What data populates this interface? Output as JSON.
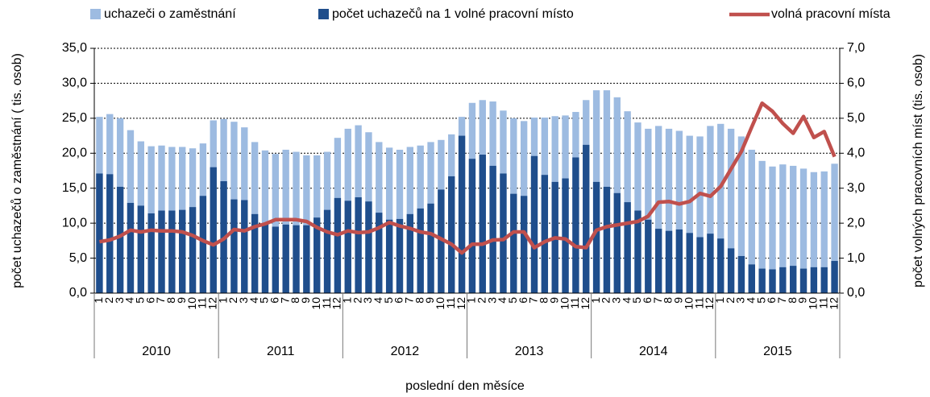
{
  "chart_data": {
    "type": "bar-line",
    "x_label": "poslední den měsíce",
    "y_label": "počet uchazečů o zaměstnání ( tis. osob)",
    "y2_label": "počet volných pracovních míst (tis. osob)",
    "categories": [
      "1",
      "2",
      "3",
      "4",
      "5",
      "6",
      "7",
      "8",
      "9",
      "10",
      "11",
      "12",
      "1",
      "2",
      "3",
      "4",
      "5",
      "6",
      "7",
      "8",
      "9",
      "10",
      "11",
      "12",
      "1",
      "2",
      "3",
      "4",
      "5",
      "6",
      "7",
      "8",
      "9",
      "10",
      "11",
      "12",
      "1",
      "2",
      "3",
      "4",
      "5",
      "6",
      "7",
      "8",
      "9",
      "10",
      "11",
      "12",
      "1",
      "2",
      "3",
      "4",
      "5",
      "6",
      "7",
      "8",
      "9",
      "10",
      "11",
      "12",
      "1",
      "2",
      "3",
      "4",
      "5",
      "6",
      "7",
      "8",
      "9",
      "10",
      "11",
      "12"
    ],
    "x_groups": [
      "2010",
      "2011",
      "2012",
      "2013",
      "2014",
      "2015"
    ],
    "ylim": [
      0,
      35
    ],
    "yticks": [
      {
        "value": 0,
        "label": "0,0"
      },
      {
        "value": 5,
        "label": "5,0"
      },
      {
        "value": 10,
        "label": "10,0"
      },
      {
        "value": 15,
        "label": "15,0"
      },
      {
        "value": 20,
        "label": "20,0"
      },
      {
        "value": 25,
        "label": "25,0"
      },
      {
        "value": 30,
        "label": "30,0"
      },
      {
        "value": 35,
        "label": "35,0"
      }
    ],
    "y2lim": [
      0,
      7
    ],
    "y2ticks": [
      {
        "value": 0,
        "label": "0,0"
      },
      {
        "value": 1,
        "label": "1,0"
      },
      {
        "value": 2,
        "label": "2,0"
      },
      {
        "value": 3,
        "label": "3,0"
      },
      {
        "value": 4,
        "label": "4,0"
      },
      {
        "value": 5,
        "label": "5,0"
      },
      {
        "value": 6,
        "label": "6,0"
      },
      {
        "value": 7,
        "label": "7,0"
      }
    ],
    "grid": true,
    "series": [
      {
        "name": "uchazeči o zaměstnání",
        "type": "bar",
        "color": "#9dbbe1",
        "axis": "y",
        "values": [
          25.2,
          25.6,
          25.0,
          23.3,
          21.7,
          21.0,
          21.1,
          20.9,
          20.9,
          20.7,
          21.4,
          24.7,
          24.9,
          24.5,
          23.7,
          21.6,
          20.4,
          19.9,
          20.5,
          20.2,
          19.7,
          19.7,
          20.2,
          22.2,
          23.5,
          24.0,
          23.0,
          21.6,
          20.8,
          20.5,
          20.9,
          21.1,
          21.6,
          21.9,
          22.7,
          25.2,
          27.2,
          27.6,
          27.4,
          26.1,
          25.0,
          24.6,
          25.1,
          25.1,
          25.3,
          25.4,
          25.9,
          27.6,
          29.0,
          29.0,
          28.0,
          26.0,
          24.4,
          23.5,
          23.9,
          23.5,
          23.2,
          22.5,
          22.4,
          23.9,
          24.2,
          23.5,
          22.4,
          20.5,
          18.9,
          18.1,
          18.4,
          18.2,
          17.8,
          17.3,
          17.4,
          18.5
        ]
      },
      {
        "name": "počet uchazečů na 1 volné pracovní místo",
        "type": "bar",
        "color": "#1f4e8c",
        "axis": "y",
        "values": [
          17.1,
          17.0,
          15.2,
          12.9,
          12.5,
          11.4,
          11.8,
          11.8,
          11.9,
          12.3,
          13.9,
          18.0,
          16.0,
          13.4,
          13.3,
          11.3,
          9.9,
          9.5,
          9.8,
          9.7,
          9.7,
          10.8,
          11.9,
          13.6,
          13.2,
          13.7,
          13.1,
          11.5,
          10.5,
          10.6,
          11.3,
          12.1,
          12.8,
          14.8,
          16.7,
          22.5,
          19.2,
          19.8,
          18.2,
          17.1,
          14.2,
          13.9,
          19.6,
          16.9,
          15.9,
          16.4,
          19.4,
          21.2,
          15.9,
          15.2,
          14.3,
          13.0,
          11.8,
          10.5,
          9.2,
          8.9,
          9.1,
          8.6,
          8.0,
          8.5,
          7.8,
          6.4,
          5.3,
          4.1,
          3.5,
          3.4,
          3.7,
          3.9,
          3.5,
          3.7,
          3.7,
          4.6
        ]
      },
      {
        "name": "volná pracovní místa",
        "type": "line",
        "color": "#c0504d",
        "axis": "y2",
        "values": [
          1.47,
          1.52,
          1.63,
          1.8,
          1.75,
          1.8,
          1.78,
          1.78,
          1.75,
          1.65,
          1.5,
          1.38,
          1.55,
          1.82,
          1.78,
          1.9,
          1.98,
          2.1,
          2.1,
          2.1,
          2.05,
          1.88,
          1.75,
          1.67,
          1.78,
          1.73,
          1.75,
          1.87,
          2.02,
          1.92,
          1.85,
          1.75,
          1.7,
          1.55,
          1.4,
          1.15,
          1.4,
          1.4,
          1.52,
          1.53,
          1.75,
          1.75,
          1.3,
          1.47,
          1.58,
          1.55,
          1.33,
          1.3,
          1.8,
          1.9,
          1.95,
          2.0,
          2.05,
          2.2,
          2.6,
          2.62,
          2.55,
          2.62,
          2.85,
          2.77,
          3.05,
          3.55,
          4.05,
          4.75,
          5.43,
          5.2,
          4.85,
          4.57,
          5.05,
          4.45,
          4.62,
          3.9
        ]
      }
    ]
  }
}
